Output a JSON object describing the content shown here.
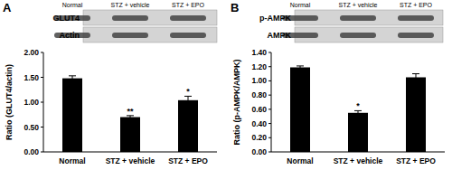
{
  "chart_data": [
    {
      "panel": "A",
      "type": "bar",
      "categories": [
        "Normal",
        "STZ + vehicle",
        "STZ + EPO"
      ],
      "values": [
        1.48,
        0.7,
        1.04
      ],
      "errors": [
        0.05,
        0.03,
        0.08
      ],
      "color": "#000000",
      "y_label": "Ratio (GLUT4/actin)",
      "ylim": [
        0,
        2
      ],
      "yticks": [
        {
          "value": 0,
          "label": "0.00"
        },
        {
          "value": 0.5,
          "label": "0.50"
        },
        {
          "value": 1,
          "label": "1.00"
        },
        {
          "value": 1.5,
          "label": "1.50"
        },
        {
          "value": 2,
          "label": "2.00"
        }
      ],
      "grid": false,
      "annotations": [
        {
          "category": "STZ + vehicle",
          "text": "**"
        },
        {
          "category": "STZ + EPO",
          "text": "*"
        }
      ],
      "blot_labels": [
        "GLUT4",
        "Actin"
      ]
    },
    {
      "panel": "B",
      "type": "bar",
      "categories": [
        "Normal",
        "STZ + vehicle",
        "STZ + EPO"
      ],
      "values": [
        1.19,
        0.55,
        1.05
      ],
      "errors": [
        0.02,
        0.03,
        0.05
      ],
      "color": "#000000",
      "y_label": "Ratio (p-AMPK/AMPK)",
      "ylim": [
        0,
        1.4
      ],
      "yticks": [
        {
          "value": 0,
          "label": "0.00"
        },
        {
          "value": 0.2,
          "label": "0.20"
        },
        {
          "value": 0.4,
          "label": "0.40"
        },
        {
          "value": 0.6,
          "label": "0.60"
        },
        {
          "value": 0.8,
          "label": "0.80"
        },
        {
          "value": 1,
          "label": "1.00"
        },
        {
          "value": 1.2,
          "label": "1.20"
        },
        {
          "value": 1.4,
          "label": "1.40"
        }
      ],
      "grid": false,
      "annotations": [
        {
          "category": "STZ + vehicle",
          "text": "*"
        }
      ],
      "blot_labels": [
        "p-AMPK",
        "AMPK"
      ]
    }
  ]
}
